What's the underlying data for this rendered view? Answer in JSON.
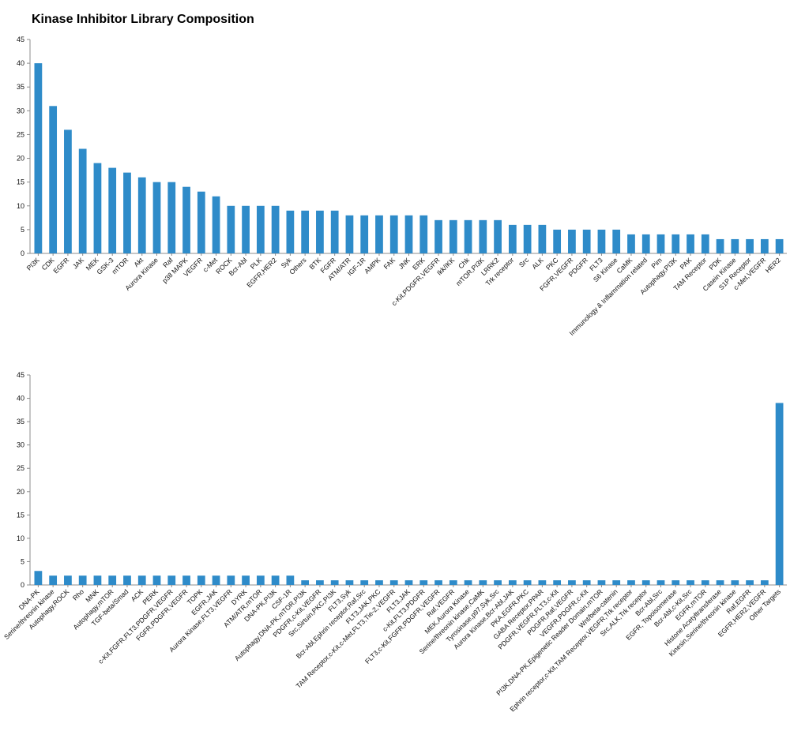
{
  "title": "Kinase Inhibitor Library Composition",
  "chart_data": [
    {
      "type": "bar",
      "title": "Kinase Inhibitor Library Composition",
      "xlabel": "",
      "ylabel": "",
      "ylim": [
        0,
        45
      ],
      "yticks": [
        0,
        5,
        10,
        15,
        20,
        25,
        30,
        35,
        40,
        45
      ],
      "grid": false,
      "color": "#2e8bc9",
      "categories": [
        "PI3K",
        "CDK",
        "EGFR",
        "JAK",
        "MEK",
        "GSK-3",
        "mTOR",
        "Akt",
        "Aurora Kinase",
        "Raf",
        "p38 MAPK",
        "VEGFR",
        "c-Met",
        "ROCK",
        "Bcr-Abl",
        "PLK",
        "EGFR,HER2",
        "Syk",
        "Others",
        "BTK",
        "FGFR",
        "ATM/ATR",
        "IGF-1R",
        "AMPK",
        "FAK",
        "JNK",
        "ERK",
        "c-Kit,PDGFR,VEGFR",
        "Ikk/IKK",
        "Chk",
        "mTOR,PI3K",
        "LRRK2",
        "Trk receptor",
        "Src",
        "ALK",
        "PKC",
        "FGFR,VEGFR",
        "PDGFR",
        "FLT3",
        "S6 Kinase",
        "CaMK",
        "Immunology & Inflammation related",
        "Pim",
        "Autophagy,PI3K",
        "PAK",
        "TAM Receptor",
        "PDK",
        "Casein Kinase",
        "S1P Receptor",
        "c-Met,VEGFR",
        "HER2"
      ],
      "values": [
        40,
        31,
        26,
        22,
        19,
        18,
        17,
        16,
        15,
        15,
        14,
        13,
        12,
        10,
        10,
        10,
        10,
        9,
        9,
        9,
        9,
        8,
        8,
        8,
        8,
        8,
        8,
        7,
        7,
        7,
        7,
        7,
        6,
        6,
        6,
        5,
        5,
        5,
        5,
        5,
        4,
        4,
        4,
        4,
        4,
        4,
        3,
        3,
        3,
        3,
        3
      ]
    },
    {
      "type": "bar",
      "title": "",
      "xlabel": "",
      "ylabel": "",
      "ylim": [
        0,
        45
      ],
      "yticks": [
        0,
        5,
        10,
        15,
        20,
        25,
        30,
        35,
        40,
        45
      ],
      "grid": false,
      "color": "#2e8bc9",
      "categories": [
        "DNA-PK",
        "Serine/threonin kinase",
        "Autophagy,ROCK",
        "Rho",
        "MNK",
        "Autophagy,mTOR",
        "TGF-beta/Smad",
        "ACK",
        "PERK",
        "c-Kit,FGFR,FLT3,PDGFR,VEGFR",
        "FGFR,PDGFR,VEGFR",
        "TOPK",
        "EGFR,JAK",
        "Aurora Kinase,FLT3,VEGFR",
        "DYRK",
        "ATM/ATR,mTOR",
        "DNA-PK,PI3K",
        "CSF-1R",
        "Autophagy,DNA-PK,mTOR,PI3K",
        "PDGFR,c-Kit,VEGFR",
        "Src,Sirtuin,PKC,PI3K",
        "FLT3,Syk",
        "Bcr-Abl,Ephrin receptor,Raf,Src",
        "FLT3,JAK,PKC",
        "TAM Receptor,c-Kit,c-Met,FLT3,Tie-2,VEGFR",
        "FLT3,JAK",
        "c-Kit,FLT3,PDGFR",
        "FLT3,c-Kit,FGFR,PDGFR,VEGFR",
        "Raf,VEGFR",
        "MEK,Aurora Kinase",
        "Serine/threonin kinase,CaMK",
        "Tyrosinase,p97,Syk,Src",
        "Aurora Kinase,Bcr-Abl,JAK",
        "PKA,EGFR,PKC",
        "GABA Receptor,PPAR",
        "PDGFR,VEGFR,FLT3,c-Kit",
        "PDGFR,Raf,VEGFR",
        "VEGFR,PDGFR,c-Kit",
        "PI3K,DNA-PK,Epigenetic Reader Domain,mTOR",
        "Wnt/beta-catenin",
        "Ephrin receptor,c-Kit,TAM Receptor,VEGFR,Trk receptor",
        "Src,ALK,Trk receptor",
        "Bcr-Abl,Src",
        "EGFR, Topoisomerase",
        "Bcr-Abl,c-Kit,Src",
        "EGFR,mTOR",
        "Histone Acetyltransferase",
        "Kinesin,Serine/threonin kinase",
        "Raf,EGFR",
        "EGFR,HER2,VEGFR",
        "Other Targets"
      ],
      "values": [
        3,
        2,
        2,
        2,
        2,
        2,
        2,
        2,
        2,
        2,
        2,
        2,
        2,
        2,
        2,
        2,
        2,
        2,
        1,
        1,
        1,
        1,
        1,
        1,
        1,
        1,
        1,
        1,
        1,
        1,
        1,
        1,
        1,
        1,
        1,
        1,
        1,
        1,
        1,
        1,
        1,
        1,
        1,
        1,
        1,
        1,
        1,
        1,
        1,
        1,
        39
      ]
    }
  ]
}
